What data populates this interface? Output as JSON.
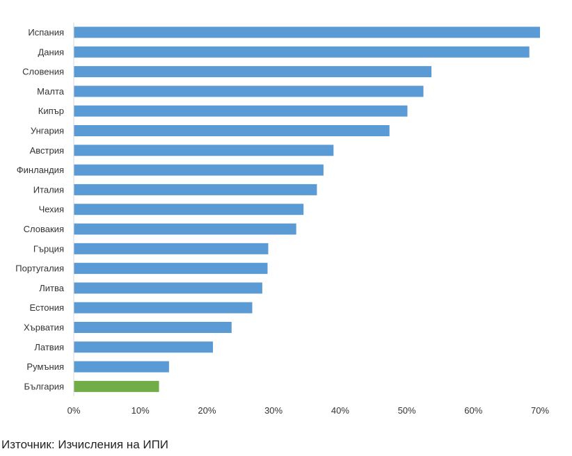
{
  "chart_data": {
    "type": "bar",
    "orientation": "horizontal",
    "categories": [
      "Испания",
      "Дания",
      "Словения",
      "Малта",
      "Кипър",
      "Унгария",
      "Австрия",
      "Финландия",
      "Италия",
      "Чехия",
      "Словакия",
      "Гърция",
      "Португалия",
      "Литва",
      "Естония",
      "Хърватия",
      "Латвия",
      "Румъния",
      "България"
    ],
    "values": [
      0.7,
      0.684,
      0.537,
      0.525,
      0.501,
      0.474,
      0.39,
      0.375,
      0.365,
      0.345,
      0.334,
      0.292,
      0.291,
      0.283,
      0.268,
      0.237,
      0.209,
      0.143,
      0.128
    ],
    "xlim": [
      0,
      0.7
    ],
    "xticks": [
      "0%",
      "10%",
      "20%",
      "30%",
      "40%",
      "50%",
      "60%",
      "70%"
    ],
    "xtick_values": [
      0,
      0.1,
      0.2,
      0.3,
      0.4,
      0.5,
      0.6,
      0.7
    ],
    "colors": {
      "default": "#5b9bd5",
      "highlight": "#70ad47",
      "axis": "#d9d9d9"
    },
    "highlight_category": "България",
    "grid": false,
    "legend": "none"
  },
  "source_text": "Източник: Изчисления на ИПИ"
}
